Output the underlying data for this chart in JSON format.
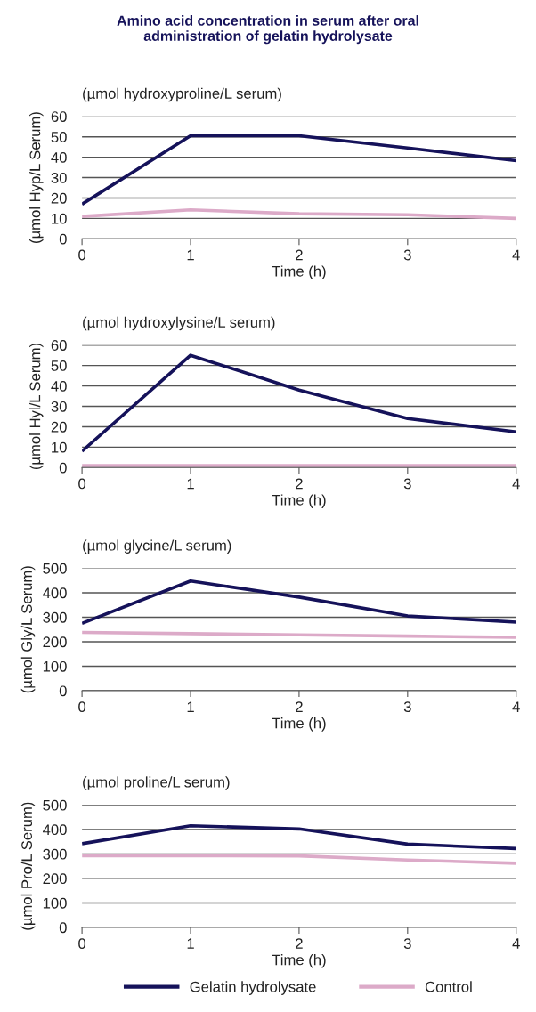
{
  "chart_data": [
    {
      "type": "line",
      "title": "Amino acid concentration in serum after oral\nadministration of gelatin hydrolysate",
      "subtitle": "(µmol hydroxyproline/L serum)",
      "xlabel": "Time (h)",
      "ylabel": "(µmol Hyp/L Serum)",
      "x": [
        0,
        1,
        2,
        3,
        4
      ],
      "xlim": [
        0,
        4
      ],
      "xticks": [
        0,
        1,
        2,
        3,
        4
      ],
      "ylim": [
        0,
        60
      ],
      "yticks": [
        0,
        10,
        20,
        30,
        40,
        50,
        60
      ],
      "grid": "y",
      "marker": "none",
      "line_style": "solid",
      "series": [
        {
          "color": "#15125a",
          "values": [
            17,
            50.5,
            50.5,
            44.5,
            38.3
          ]
        },
        {
          "color": "#dcaac8",
          "values": [
            11,
            14.2,
            12.3,
            11.8,
            10
          ]
        }
      ]
    },
    {
      "type": "line",
      "subtitle": "(µmol hydroxylysine/L serum)",
      "xlabel": "Time (h)",
      "ylabel": "(µmol Hyl/L Serum)",
      "x": [
        0,
        1,
        2,
        3,
        4
      ],
      "xlim": [
        0,
        4
      ],
      "xticks": [
        0,
        1,
        2,
        3,
        4
      ],
      "ylim": [
        0,
        60
      ],
      "yticks": [
        0,
        10,
        20,
        30,
        40,
        50,
        60
      ],
      "grid": "y",
      "marker": "none",
      "line_style": "solid",
      "series": [
        {
          "color": "#15125a",
          "values": [
            8,
            55,
            38,
            24,
            17.5
          ]
        },
        {
          "color": "#dcaac8",
          "values": [
            1,
            1,
            1,
            1,
            1
          ]
        }
      ]
    },
    {
      "type": "line",
      "subtitle": "(µmol glycine/L serum)",
      "xlabel": "Time (h)",
      "ylabel": "(µmol Gly/L Serum)",
      "x": [
        0,
        1,
        2,
        3,
        4
      ],
      "xlim": [
        0,
        4
      ],
      "xticks": [
        0,
        1,
        2,
        3,
        4
      ],
      "ylim": [
        0,
        500
      ],
      "yticks": [
        0,
        100,
        200,
        300,
        400,
        500
      ],
      "grid": "y",
      "marker": "none",
      "line_style": "solid",
      "series": [
        {
          "color": "#15125a",
          "values": [
            275,
            448,
            382,
            305,
            280
          ]
        },
        {
          "color": "#dcaac8",
          "values": [
            238,
            233,
            228,
            223,
            218
          ]
        }
      ]
    },
    {
      "type": "line",
      "subtitle": "(µmol proline/L serum)",
      "xlabel": "Time (h)",
      "ylabel": "(µmol Pro/L Serum)",
      "x": [
        0,
        1,
        2,
        3,
        4
      ],
      "xlim": [
        0,
        4
      ],
      "xticks": [
        0,
        1,
        2,
        3,
        4
      ],
      "ylim": [
        0,
        500
      ],
      "yticks": [
        0,
        100,
        200,
        300,
        400,
        500
      ],
      "grid": "y",
      "marker": "none",
      "line_style": "solid",
      "legend": "bottom",
      "series": [
        {
          "name": "Gelatin hydrolysate",
          "color": "#15125a",
          "values": [
            342,
            415,
            402,
            340,
            322
          ]
        },
        {
          "name": "Control",
          "color": "#dcaac8",
          "values": [
            293,
            293,
            292,
            275,
            262
          ]
        }
      ]
    }
  ]
}
